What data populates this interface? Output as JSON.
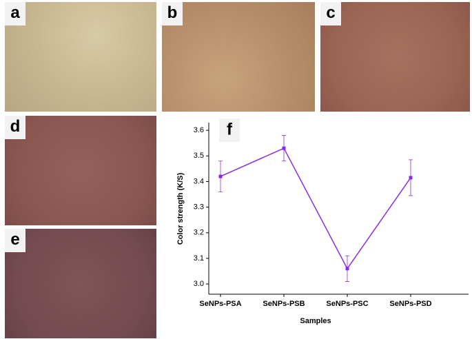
{
  "panels": [
    {
      "label": "a"
    },
    {
      "label": "b"
    },
    {
      "label": "c"
    },
    {
      "label": "d"
    },
    {
      "label": "e"
    }
  ],
  "chart_data": {
    "type": "line",
    "panel_label": "f",
    "x_label": "Samples",
    "y_label": "Color strength (K/S)",
    "categories": [
      "SeNPs-PSA",
      "SeNPs-PSB",
      "SeNPs-PSC",
      "SeNPs-PSD"
    ],
    "values": [
      3.42,
      3.53,
      3.06,
      3.415
    ],
    "errors": [
      0.06,
      0.05,
      0.05,
      0.07
    ],
    "color": "#8a2be2",
    "ylim": [
      2.96,
      3.63
    ],
    "yticks": [
      {
        "value": 3,
        "label": "3.0"
      },
      3.1,
      3.2,
      3.3,
      3.4,
      3.5,
      3.6
    ]
  }
}
